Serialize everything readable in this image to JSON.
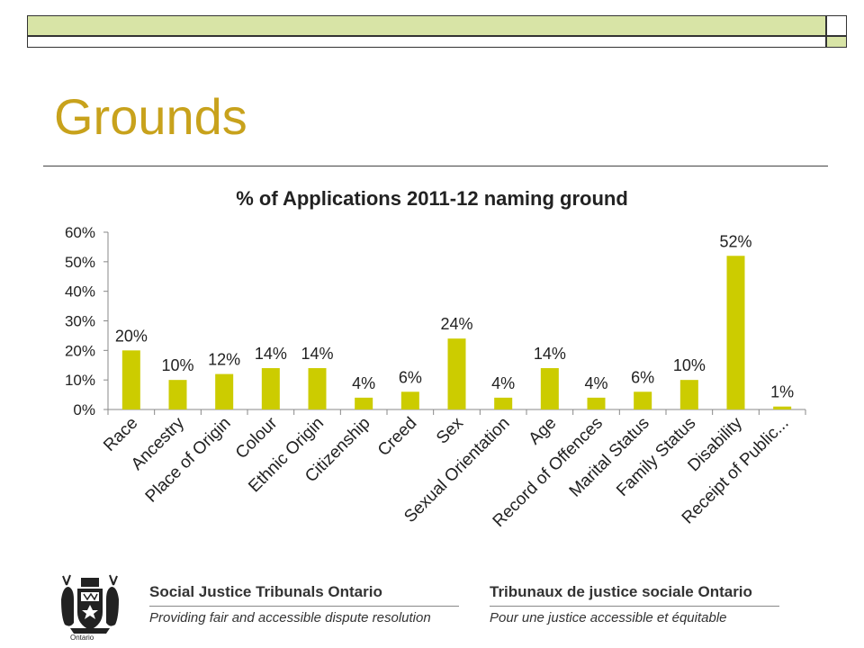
{
  "page": {
    "title": "Grounds"
  },
  "chart_data": {
    "type": "bar",
    "title": "% of Applications 2011-12 naming ground",
    "categories": [
      "Race",
      "Ancestry",
      "Place of Origin",
      "Colour",
      "Ethnic Origin",
      "Citizenship",
      "Creed",
      "Sex",
      "Sexual Orientation",
      "Age",
      "Record of Offences",
      "Marital Status",
      "Family Status",
      "Disability",
      "Receipt of Public..."
    ],
    "values": [
      20,
      10,
      12,
      14,
      14,
      4,
      6,
      24,
      4,
      14,
      4,
      6,
      10,
      52,
      1
    ],
    "data_labels": [
      "20%",
      "10%",
      "12%",
      "14%",
      "14%",
      "4%",
      "6%",
      "24%",
      "4%",
      "14%",
      "4%",
      "6%",
      "10%",
      "52%",
      "1%"
    ],
    "ylim": [
      0,
      60
    ],
    "yticks": [
      "0%",
      "10%",
      "20%",
      "30%",
      "40%",
      "50%",
      "60%"
    ],
    "xlabel": "",
    "ylabel": "",
    "grid": false,
    "bar_color": "#cccc00"
  },
  "footer": {
    "en_title": "Social Justice Tribunals Ontario",
    "en_subtitle": "Providing fair and accessible dispute resolution",
    "fr_title": "Tribunaux de justice sociale Ontario",
    "fr_subtitle": "Pour une justice accessible et équitable",
    "crest_caption": "Ontario"
  },
  "colors": {
    "title": "#c8a21c",
    "decor_fill": "#d8e4a6"
  }
}
